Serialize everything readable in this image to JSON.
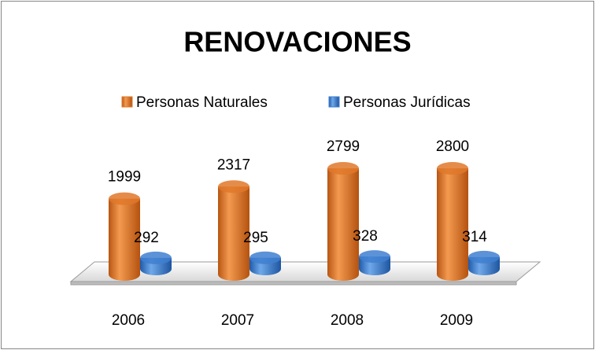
{
  "chart_data": {
    "type": "bar3d",
    "title": "RENOVACIONES",
    "categories": [
      "2006",
      "2007",
      "2008",
      "2009"
    ],
    "series": [
      {
        "name": "Personas Naturales",
        "color": "#e0782a",
        "values": [
          1999,
          2317,
          2799,
          2800
        ]
      },
      {
        "name": "Personas Jurídicas",
        "color": "#3f7fd0",
        "values": [
          292,
          295,
          328,
          314
        ]
      }
    ],
    "legend": "top"
  }
}
